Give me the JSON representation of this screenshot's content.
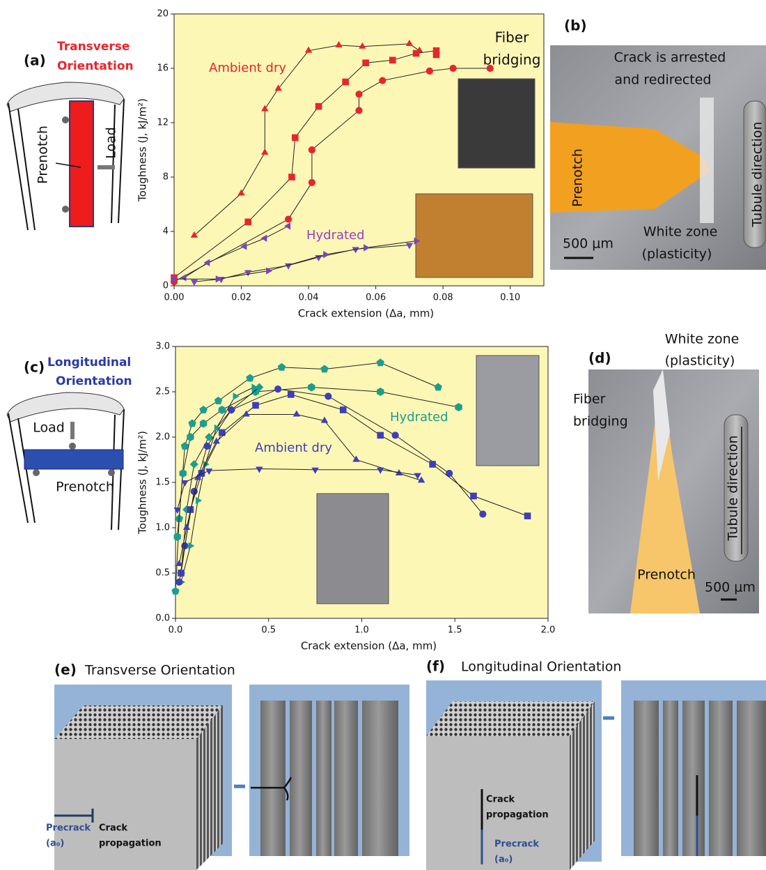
{
  "chart_data": [
    {
      "type": "line",
      "xlabel": "Crack extension (Δa, mm)",
      "ylabel": "Toughness (J, kJ/m²)",
      "xlim": [
        0,
        0.11
      ],
      "ylim": [
        0,
        20
      ],
      "xticks": [
        {
          "value": 0,
          "label": "0.00"
        },
        {
          "value": 0.02,
          "label": "0.02"
        },
        {
          "value": 0.04,
          "label": "0.04"
        },
        {
          "value": 0.06,
          "label": "0.06"
        },
        {
          "value": 0.08,
          "label": "0.08"
        },
        {
          "value": 0.1,
          "label": "0.10"
        }
      ],
      "yticks": [
        0,
        4,
        8,
        12,
        16,
        20
      ],
      "background": "#fdf7b6",
      "annotations": [
        {
          "text": "Ambient dry",
          "color": "#e8252a"
        },
        {
          "text": [
            "Fiber",
            "bridging"
          ],
          "color": "#111111"
        },
        {
          "text": "Hydrated",
          "color": "#9a3fc0"
        }
      ],
      "series": [
        {
          "color": "#e8252a",
          "marker": "triangle-up",
          "x": [
            0.006,
            0.02,
            0.027,
            0.027,
            0.031,
            0.04,
            0.049,
            0.056,
            0.07,
            0.073
          ],
          "values": [
            3.7,
            6.8,
            9.8,
            13.0,
            14.5,
            17.3,
            17.7,
            17.6,
            17.8,
            17.3
          ]
        },
        {
          "color": "#e8252a",
          "marker": "square",
          "x": [
            0,
            0.022,
            0.035,
            0.036,
            0.043,
            0.051,
            0.057,
            0.065,
            0.072,
            0.078,
            0.078
          ],
          "values": [
            0.6,
            4.7,
            8.0,
            10.9,
            13.2,
            15.0,
            16.4,
            16.6,
            17.1,
            17.3,
            17.0
          ]
        },
        {
          "color": "#e8252a",
          "marker": "circle",
          "x": [
            0,
            0.034,
            0.041,
            0.041,
            0.055,
            0.055,
            0.062,
            0.076,
            0.083,
            0.094
          ],
          "values": [
            0.3,
            4.9,
            7.6,
            10.0,
            12.9,
            14.1,
            15.1,
            15.8,
            16.0,
            16.0
          ]
        },
        {
          "color": "#7a45b8",
          "marker": "triangle-left",
          "x": [
            0.003,
            0.01,
            0.021,
            0.027,
            0.034
          ],
          "values": [
            0.6,
            1.7,
            2.9,
            3.5,
            4.4
          ]
        },
        {
          "color": "#7a45b8",
          "marker": "triangle-down",
          "x": [
            0.006,
            0.014,
            0.022,
            0.034,
            0.043,
            0.054,
            0.07
          ],
          "values": [
            0.3,
            0.5,
            1.0,
            1.5,
            2.1,
            2.7,
            3.0
          ]
        },
        {
          "color": "#7a45b8",
          "marker": "triangle-right",
          "x": [
            0,
            0.013,
            0.028,
            0.045,
            0.057,
            0.072
          ],
          "values": [
            0.5,
            0.5,
            1.1,
            2.3,
            2.8,
            3.3
          ]
        }
      ]
    },
    {
      "type": "line",
      "xlabel": "Crack extension (Δa, mm)",
      "ylabel": "Toughness (J, kJ/m²)",
      "xlim": [
        0,
        2.0
      ],
      "ylim": [
        0,
        3.0
      ],
      "xticks": [
        {
          "value": 0,
          "label": "0.0"
        },
        {
          "value": 0.5,
          "label": "0.5"
        },
        {
          "value": 1,
          "label": "1.0"
        },
        {
          "value": 1.5,
          "label": "1.5"
        },
        {
          "value": 2,
          "label": "2.0"
        }
      ],
      "yticks": [
        {
          "value": 0,
          "label": "0.0"
        },
        0.5,
        {
          "value": 1,
          "label": "1.0"
        },
        1.5,
        {
          "value": 2,
          "label": "2.0"
        },
        2.5,
        {
          "value": 3,
          "label": "3.0"
        }
      ],
      "background": "#fdf7b6",
      "annotations": [
        {
          "text": "Hydrated",
          "color": "#1a9e8f"
        },
        {
          "text": "Ambient dry",
          "color": "#3d3fb8"
        }
      ],
      "series": [
        {
          "color": "#1a9e8f",
          "marker": "pentagon",
          "x": [
            0,
            0.02,
            0.05,
            0.09,
            0.15,
            0.23,
            0.4,
            0.57,
            0.8,
            1.1,
            1.41
          ],
          "values": [
            0.3,
            1.1,
            1.9,
            2.15,
            2.3,
            2.4,
            2.65,
            2.77,
            2.75,
            2.82,
            2.55
          ]
        },
        {
          "color": "#1a9e8f",
          "marker": "hexagon",
          "x": [
            0.01,
            0.04,
            0.08,
            0.15,
            0.25,
            0.43,
            0.73,
            1.1,
            1.52
          ],
          "values": [
            0.9,
            1.6,
            2.0,
            2.15,
            2.3,
            2.5,
            2.55,
            2.5,
            2.33
          ]
        },
        {
          "color": "#1a9e8f",
          "marker": "diamond",
          "x": [
            0.03,
            0.06,
            0.1,
            0.18,
            0.3,
            0.45
          ],
          "values": [
            0.5,
            1.2,
            1.7,
            2.0,
            2.3,
            2.55
          ]
        },
        {
          "color": "#1a9e8f",
          "marker": "triangle-right",
          "x": [
            0.03,
            0.08,
            0.12,
            0.16,
            0.22,
            0.32,
            0.42
          ],
          "values": [
            0.4,
            0.8,
            1.3,
            1.7,
            2.1,
            2.45,
            2.55
          ]
        },
        {
          "color": "#3d3fb8",
          "marker": "circle",
          "x": [
            0.02,
            0.05,
            0.1,
            0.17,
            0.3,
            0.55,
            0.82,
            1.18,
            1.47,
            1.65
          ],
          "values": [
            0.4,
            0.8,
            1.4,
            1.9,
            2.3,
            2.53,
            2.45,
            2.02,
            1.6,
            1.15
          ]
        },
        {
          "color": "#3d3fb8",
          "marker": "square",
          "x": [
            0.03,
            0.08,
            0.14,
            0.25,
            0.43,
            0.62,
            0.9,
            1.1,
            1.38,
            1.6,
            1.89
          ],
          "values": [
            0.5,
            1.2,
            1.6,
            2.05,
            2.35,
            2.47,
            2.3,
            2.02,
            1.7,
            1.35,
            1.13
          ]
        },
        {
          "color": "#3d3fb8",
          "marker": "triangle-up",
          "x": [
            0.02,
            0.06,
            0.12,
            0.22,
            0.38,
            0.65,
            0.8,
            0.97,
            1.2,
            1.32
          ],
          "values": [
            0.6,
            1.0,
            1.55,
            1.95,
            2.25,
            2.25,
            2.18,
            1.75,
            1.6,
            1.52
          ]
        },
        {
          "color": "#3d3fb8",
          "marker": "triangle-down",
          "x": [
            0.01,
            0.05,
            0.18,
            0.45,
            0.75,
            1.1,
            1.3
          ],
          "values": [
            1.2,
            1.5,
            1.63,
            1.65,
            1.64,
            1.64,
            1.58
          ]
        }
      ]
    }
  ],
  "panel_a": {
    "label": "(a)",
    "title": [
      "Transverse",
      "Orientation"
    ],
    "prenotch": "Prenotch",
    "load": "Load"
  },
  "panel_b": {
    "label": "(b)",
    "crack": [
      "Crack is arrested",
      "and redirected"
    ],
    "prenotch": "Prenotch",
    "white_zone": [
      "White zone",
      "(plasticity)"
    ],
    "tubule": "Tubule direction",
    "scale": "500 μm"
  },
  "panel_c": {
    "label": "(c)",
    "title": [
      "Longitudinal",
      "Orientation"
    ],
    "load": "Load",
    "prenotch": "Prenotch"
  },
  "panel_d": {
    "label": "(d)",
    "white_zone": [
      "White zone",
      "(plasticity)"
    ],
    "fiber": [
      "Fiber",
      "bridging"
    ],
    "tubule": "Tubule direction",
    "prenotch": "Prenotch",
    "scale": "500 μm"
  },
  "panel_e": {
    "label": "(e)",
    "title": "Transverse Orientation",
    "precrack": [
      "Precrack",
      "(a₀)"
    ],
    "propagation": [
      "Crack",
      "propagation"
    ]
  },
  "panel_f": {
    "label": "(f)",
    "title": "Longitudinal Orientation",
    "propagation": [
      "Crack",
      "propagation"
    ],
    "precrack": [
      "Precrack",
      "(a₀)"
    ]
  }
}
